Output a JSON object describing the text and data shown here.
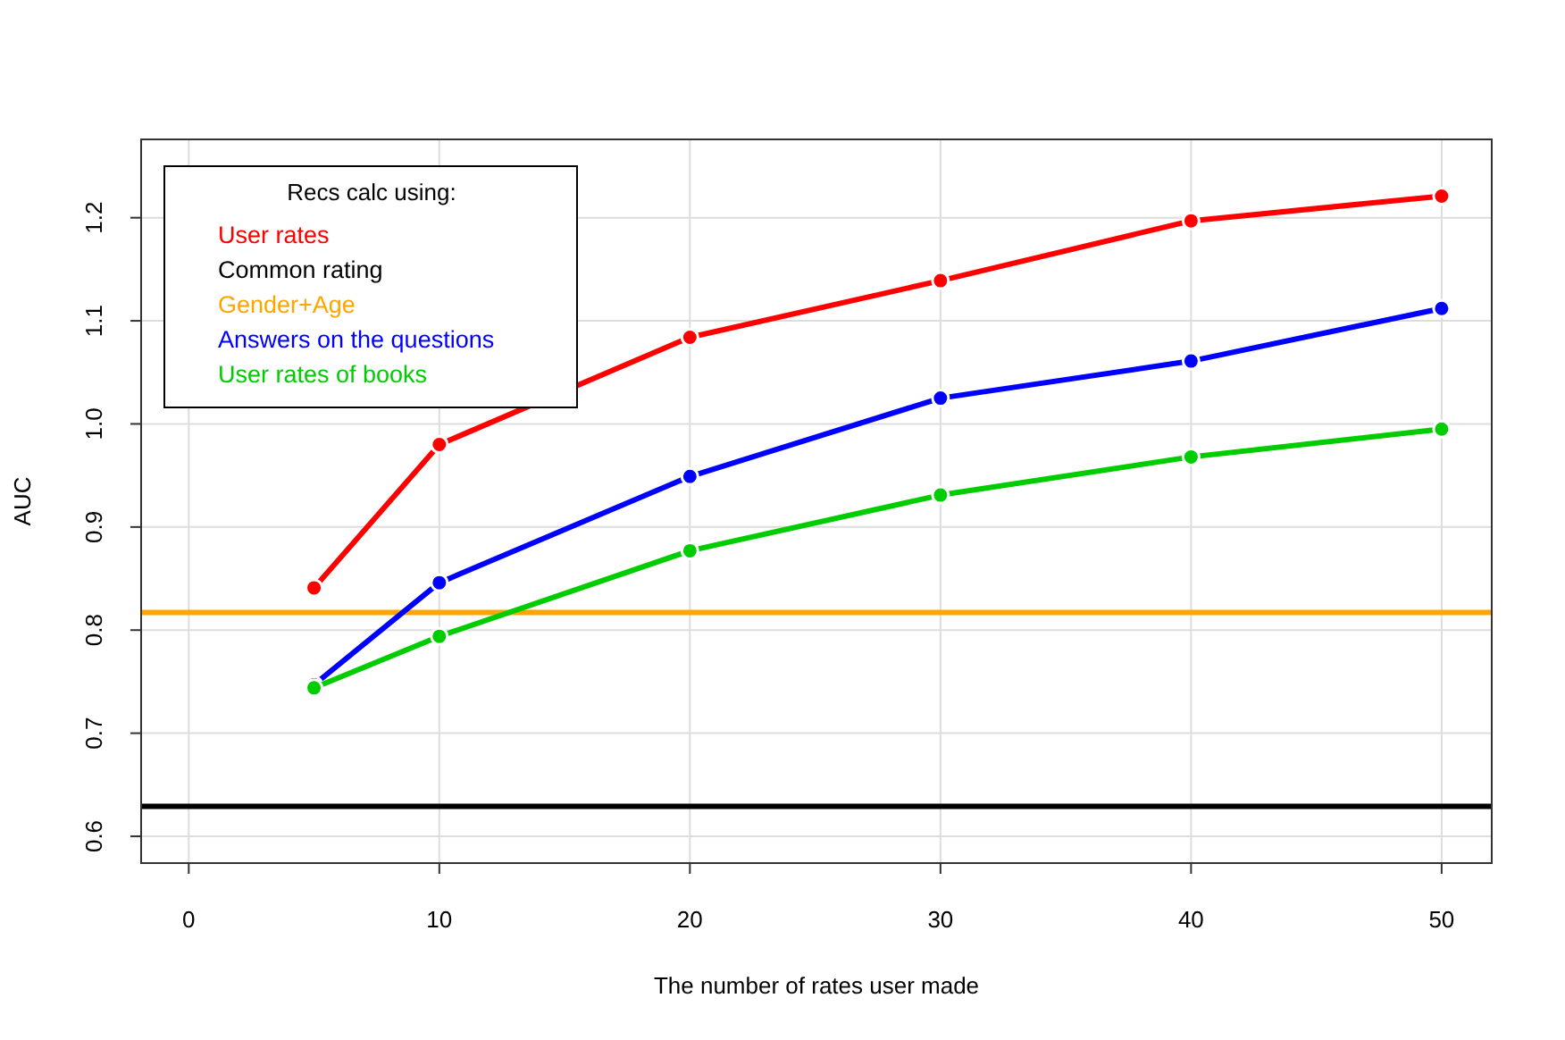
{
  "chart_data": {
    "type": "line",
    "xlabel": "The number of rates user made",
    "ylabel": "AUC",
    "legend_title": "Recs calc using:",
    "legend": "top left",
    "grid": true,
    "marker": "circle",
    "line_style": "solid",
    "xlim": [
      -1.9,
      52
    ],
    "xticks": [
      0,
      10,
      20,
      30,
      40,
      50
    ],
    "ylim": [
      0.574,
      1.276
    ],
    "yticks": [
      0.6,
      0.7,
      0.8,
      0.9,
      {
        "value": 1,
        "label": "1.0"
      },
      1.1,
      1.2
    ],
    "series": [
      {
        "name": "User rates",
        "color": "#ff0000",
        "x": [
          5,
          10,
          20,
          30,
          40,
          50
        ],
        "values": [
          0.841,
          0.98,
          1.084,
          1.139,
          1.197,
          1.221
        ]
      },
      {
        "name": "Common rating",
        "color": "#000000",
        "marker": "none",
        "x": [
          -1.9,
          52
        ],
        "values": [
          0.629,
          0.629
        ]
      },
      {
        "name": "Gender+Age",
        "color": "#ffa500",
        "marker": "none",
        "x": [
          -1.9,
          52
        ],
        "values": [
          0.817,
          0.817
        ]
      },
      {
        "name": "Answers on the questions",
        "color": "#0000ff",
        "x": [
          5,
          10,
          20,
          30,
          40,
          50
        ],
        "values": [
          0.747,
          0.846,
          0.949,
          1.025,
          1.061,
          1.112
        ]
      },
      {
        "name": "User rates of books",
        "color": "#00cd00",
        "x": [
          5,
          10,
          20,
          30,
          40,
          50
        ],
        "values": [
          0.744,
          0.794,
          0.877,
          0.931,
          0.968,
          0.995
        ]
      }
    ]
  }
}
